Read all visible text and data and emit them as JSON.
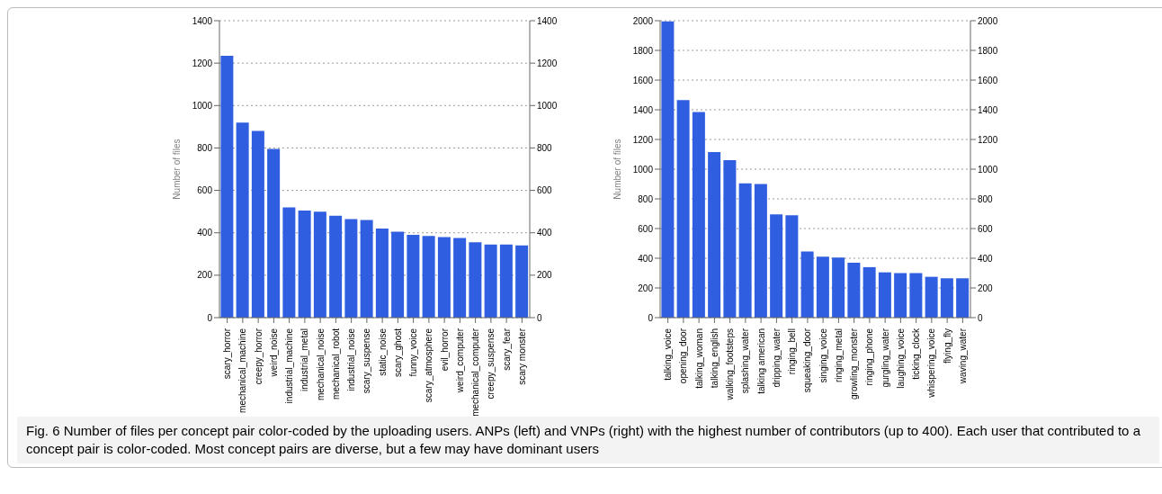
{
  "chart_data": [
    {
      "type": "bar",
      "ylabel": "Number of files",
      "categories": [
        "scary_horror",
        "mechanical_machine",
        "creepy_horror",
        "weird_noise",
        "industrial_machine",
        "industrial_metal",
        "mechanical_noise",
        "mechanical_robot",
        "industrial_noise",
        "scary_suspense",
        "static_noise",
        "scary_ghost",
        "funny_voice",
        "scary_atmosphere",
        "evil_horror",
        "weird_computer",
        "mechanical_computer",
        "creepy_suspense",
        "scary_fear",
        "scary monster"
      ],
      "values": [
        1235,
        920,
        880,
        795,
        520,
        505,
        500,
        480,
        465,
        460,
        420,
        405,
        390,
        385,
        380,
        375,
        355,
        345,
        345,
        340
      ],
      "color": "#2f5fe0",
      "ylim": [
        0,
        1400
      ],
      "yticks": [
        0,
        200,
        400,
        600,
        800,
        1000,
        1200,
        1400
      ],
      "y2lim": [
        0,
        1400
      ],
      "y2ticks": [
        0,
        200,
        400,
        600,
        800,
        1000,
        1200,
        1400
      ],
      "grid": "y",
      "annotations": [
        "Fig. 6 Number of files per concept pair color-coded by the uploading users. ANPs (left) and VNPs (right) with the highest number of contributors (up to 400). Each user that contributed to a concept pair is color-coded. Most concept pairs are diverse, but a few may have dominant users"
      ]
    },
    {
      "type": "bar",
      "ylabel": "Number of files",
      "categories": [
        "talking_voice",
        "opening_door",
        "talking_woman",
        "talking_english",
        "walking_footsteps",
        "splashing_water",
        "talking american",
        "dripping_water",
        "ringing_bell",
        "squeaking_door",
        "singing_voice",
        "ringing_metal",
        "growling_monster",
        "ringing_phone",
        "gurgling_water",
        "laughing_voice",
        "ticking_clock",
        "whispering_voice",
        "flying_fly",
        "waving_water"
      ],
      "values": [
        1995,
        1465,
        1385,
        1115,
        1060,
        905,
        900,
        695,
        690,
        445,
        410,
        405,
        370,
        340,
        305,
        300,
        300,
        275,
        265,
        265
      ],
      "color": "#2f5fe0",
      "ylim": [
        0,
        2000
      ],
      "yticks": [
        0,
        200,
        400,
        600,
        800,
        1000,
        1200,
        1400,
        1600,
        1800,
        2000
      ],
      "y2lim": [
        0,
        2000
      ],
      "y2ticks": [
        0,
        200,
        400,
        600,
        800,
        1000,
        1200,
        1400,
        1600,
        1800,
        2000
      ],
      "grid": "y"
    }
  ]
}
